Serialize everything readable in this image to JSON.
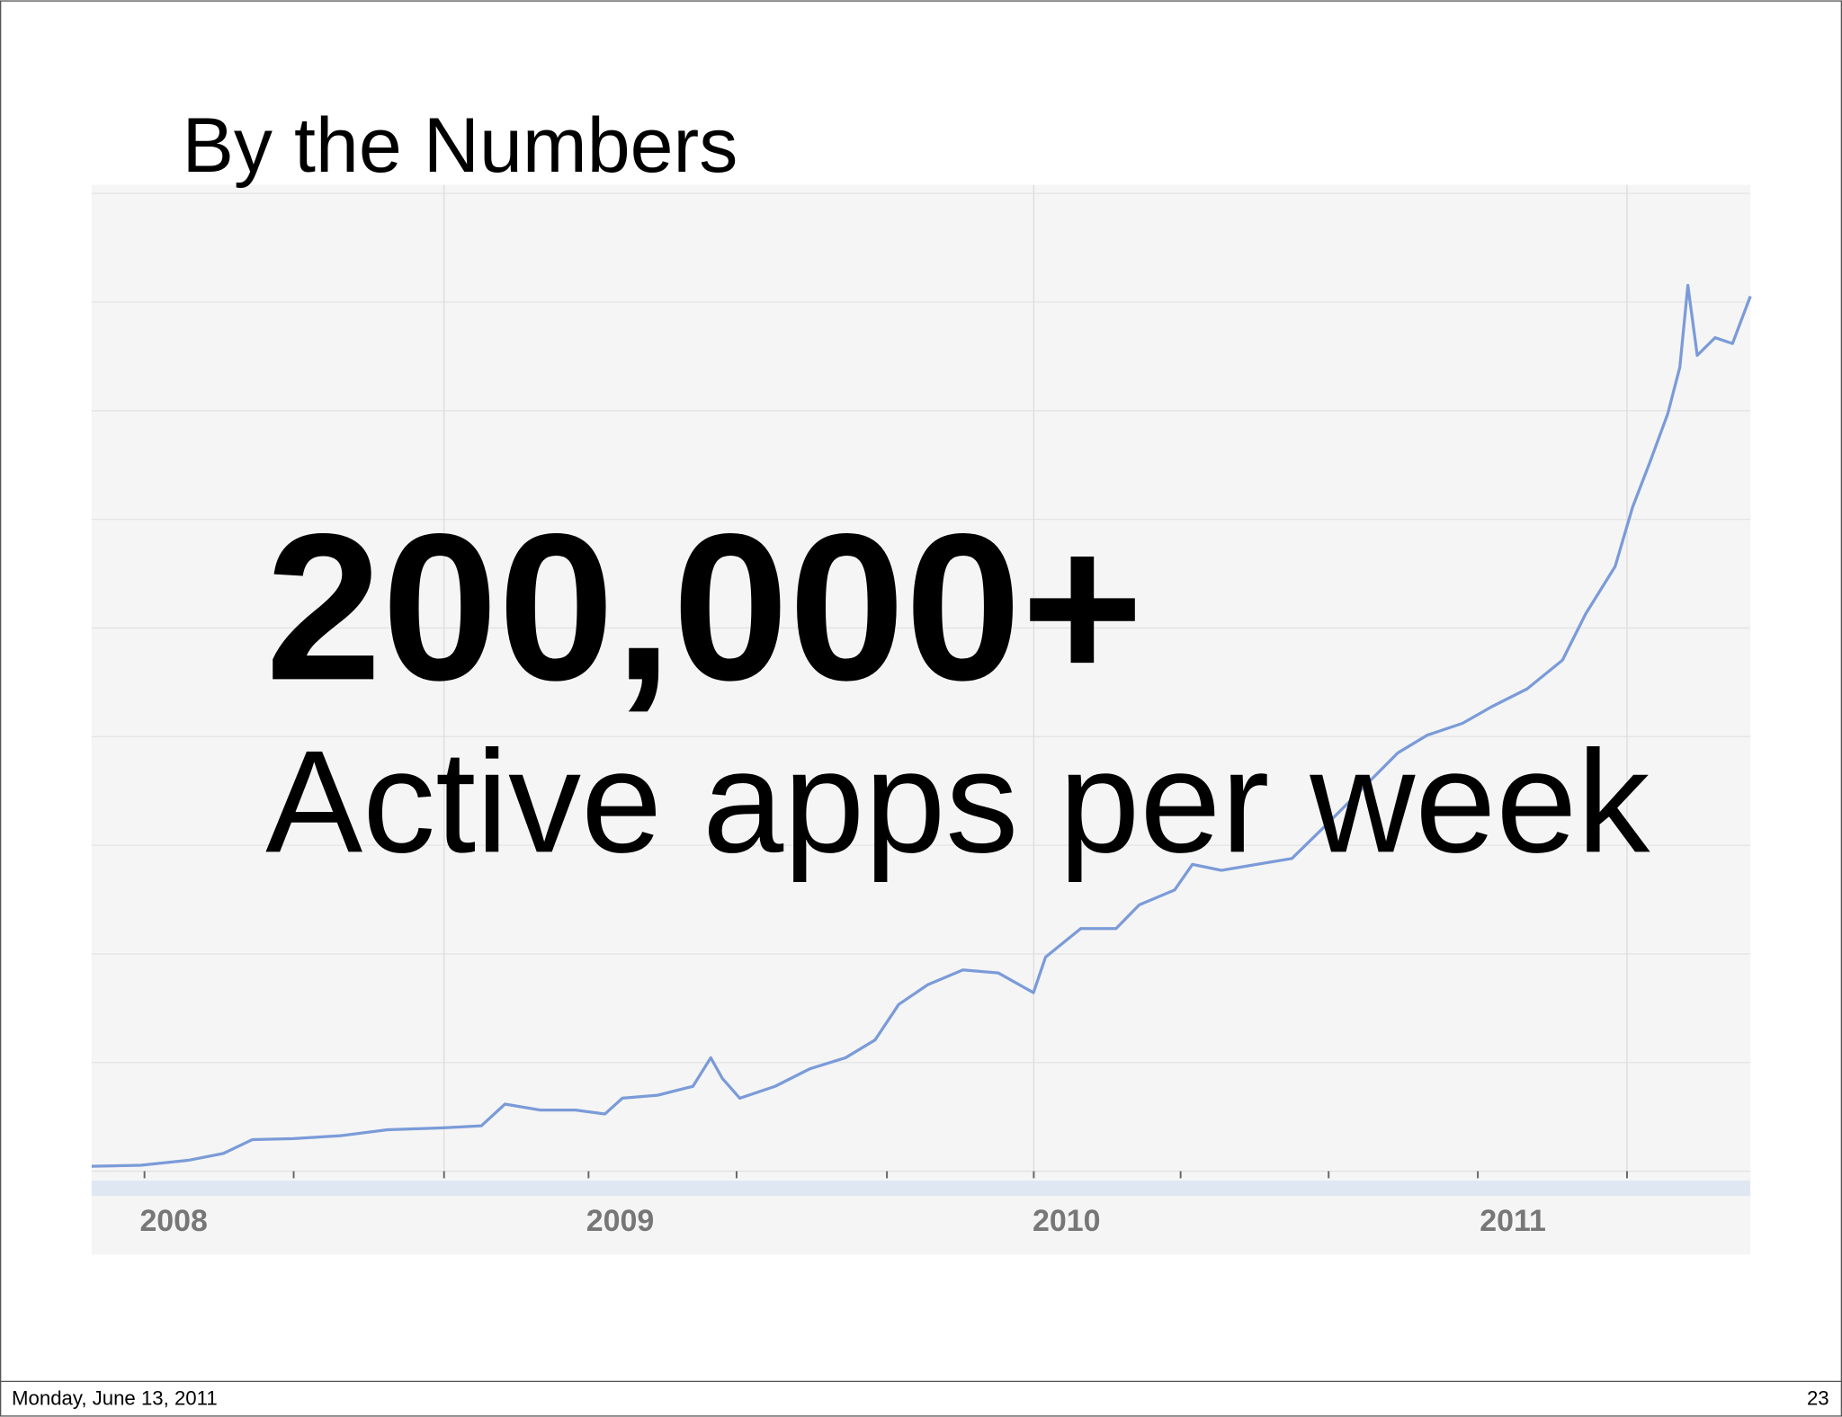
{
  "slide": {
    "title": "By the Numbers",
    "footer_date": "Monday, June 13, 2011",
    "page_number": 23
  },
  "chart_data": {
    "type": "line",
    "headline": "200,000+",
    "subheadline": "Active apps per week",
    "x": [
      2007.816,
      2007.926,
      2008.032,
      2008.111,
      2008.176,
      2008.268,
      2008.374,
      2008.479,
      2008.605,
      2008.689,
      2008.742,
      2008.821,
      2008.9,
      2008.966,
      2009.005,
      2009.084,
      2009.163,
      2009.203,
      2009.229,
      2009.268,
      2009.347,
      2009.426,
      2009.505,
      2009.571,
      2009.624,
      2009.689,
      2009.768,
      2009.847,
      2009.926,
      2009.953,
      2010.032,
      2010.111,
      2010.163,
      2010.242,
      2010.282,
      2010.347,
      2010.426,
      2010.505,
      2010.584,
      2010.663,
      2010.742,
      2010.808,
      2010.887,
      2010.953,
      2011.032,
      2011.111,
      2011.163,
      2011.229,
      2011.268,
      2011.308,
      2011.347,
      2011.374,
      2011.392,
      2011.413,
      2011.453,
      2011.492,
      2011.532
    ],
    "series": [
      {
        "color": "#7b9bd8",
        "values": [
          0.5,
          0.6,
          1.1,
          1.8,
          3.2,
          3.3,
          3.6,
          4.2,
          4.4,
          4.6,
          6.8,
          6.2,
          6.2,
          5.8,
          7.4,
          7.7,
          8.6,
          11.5,
          9.4,
          7.4,
          8.6,
          10.4,
          11.5,
          13.3,
          16.9,
          18.9,
          20.4,
          20.1,
          18.1,
          21.7,
          24.6,
          24.6,
          27.0,
          28.5,
          31.1,
          30.5,
          31.1,
          31.7,
          35.2,
          38.8,
          42.4,
          44.2,
          45.4,
          47.1,
          48.9,
          51.8,
          56.5,
          61.3,
          67.3,
          72.0,
          76.8,
          81.5,
          89.8,
          82.7,
          84.5,
          83.9,
          88.7
        ]
      }
    ],
    "xlim": [
      2007.816,
      2011.532
    ],
    "xticks": [
      2008,
      2009,
      2010,
      2011
    ],
    "ylim": [
      0,
      100
    ],
    "grid": true
  }
}
